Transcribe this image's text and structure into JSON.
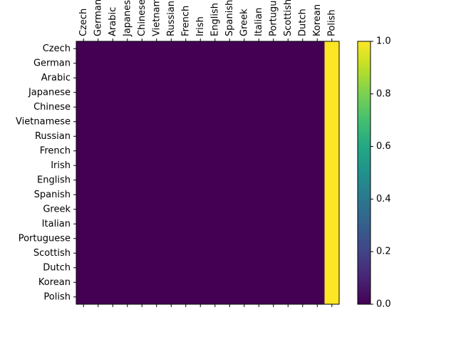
{
  "chart_data": {
    "type": "heatmap",
    "title": "",
    "xlabel": "",
    "ylabel": "",
    "x_categories": [
      "Czech",
      "German",
      "Arabic",
      "Japanese",
      "Chinese",
      "Vietnamese",
      "Russian",
      "French",
      "Irish",
      "English",
      "Spanish",
      "Greek",
      "Italian",
      "Portuguese",
      "Scottish",
      "Dutch",
      "Korean",
      "Polish"
    ],
    "y_categories": [
      "Czech",
      "German",
      "Arabic",
      "Japanese",
      "Chinese",
      "Vietnamese",
      "Russian",
      "French",
      "Irish",
      "English",
      "Spanish",
      "Greek",
      "Italian",
      "Portuguese",
      "Scottish",
      "Dutch",
      "Korean",
      "Polish"
    ],
    "values": [
      [
        0,
        0,
        0,
        0,
        0,
        0,
        0,
        0,
        0,
        0,
        0,
        0,
        0,
        0,
        0,
        0,
        0,
        1
      ],
      [
        0,
        0,
        0,
        0,
        0,
        0,
        0,
        0,
        0,
        0,
        0,
        0,
        0,
        0,
        0,
        0,
        0,
        1
      ],
      [
        0,
        0,
        0,
        0,
        0,
        0,
        0,
        0,
        0,
        0,
        0,
        0,
        0,
        0,
        0,
        0,
        0,
        1
      ],
      [
        0,
        0,
        0,
        0,
        0,
        0,
        0,
        0,
        0,
        0,
        0,
        0,
        0,
        0,
        0,
        0,
        0,
        1
      ],
      [
        0,
        0,
        0,
        0,
        0,
        0,
        0,
        0,
        0,
        0,
        0,
        0,
        0,
        0,
        0,
        0,
        0,
        1
      ],
      [
        0,
        0,
        0,
        0,
        0,
        0,
        0,
        0,
        0,
        0,
        0,
        0,
        0,
        0,
        0,
        0,
        0,
        1
      ],
      [
        0,
        0,
        0,
        0,
        0,
        0,
        0,
        0,
        0,
        0,
        0,
        0,
        0,
        0,
        0,
        0,
        0,
        1
      ],
      [
        0,
        0,
        0,
        0,
        0,
        0,
        0,
        0,
        0,
        0,
        0,
        0,
        0,
        0,
        0,
        0,
        0,
        1
      ],
      [
        0,
        0,
        0,
        0,
        0,
        0,
        0,
        0,
        0,
        0,
        0,
        0,
        0,
        0,
        0,
        0,
        0,
        1
      ],
      [
        0,
        0,
        0,
        0,
        0,
        0,
        0,
        0,
        0,
        0,
        0,
        0,
        0,
        0,
        0,
        0,
        0,
        1
      ],
      [
        0,
        0,
        0,
        0,
        0,
        0,
        0,
        0,
        0,
        0,
        0,
        0,
        0,
        0,
        0,
        0,
        0,
        1
      ],
      [
        0,
        0,
        0,
        0,
        0,
        0,
        0,
        0,
        0,
        0,
        0,
        0,
        0,
        0,
        0,
        0,
        0,
        1
      ],
      [
        0,
        0,
        0,
        0,
        0,
        0,
        0,
        0,
        0,
        0,
        0,
        0,
        0,
        0,
        0,
        0,
        0,
        1
      ],
      [
        0,
        0,
        0,
        0,
        0,
        0,
        0,
        0,
        0,
        0,
        0,
        0,
        0,
        0,
        0,
        0,
        0,
        1
      ],
      [
        0,
        0,
        0,
        0,
        0,
        0,
        0,
        0,
        0,
        0,
        0,
        0,
        0,
        0,
        0,
        0,
        0,
        1
      ],
      [
        0,
        0,
        0,
        0,
        0,
        0,
        0,
        0,
        0,
        0,
        0,
        0,
        0,
        0,
        0,
        0,
        0,
        1
      ],
      [
        0,
        0,
        0,
        0,
        0,
        0,
        0,
        0,
        0,
        0,
        0,
        0,
        0,
        0,
        0,
        0,
        0,
        1
      ],
      [
        0,
        0,
        0,
        0,
        0,
        0,
        0,
        0,
        0,
        0,
        0,
        0,
        0,
        0,
        0,
        0,
        0,
        1
      ]
    ],
    "colormap": "viridis",
    "color_low": "#440154",
    "color_high": "#fde725",
    "vmin": 0,
    "vmax": 1,
    "colorbar": {
      "ticks": [
        0.0,
        0.2,
        0.4,
        0.6,
        0.8,
        1.0
      ],
      "tick_labels": [
        "0.0",
        "0.2",
        "0.4",
        "0.6",
        "0.8",
        "1.0"
      ]
    },
    "x_tick_position": "top",
    "x_tick_rotation": "vertical",
    "grid": false
  }
}
